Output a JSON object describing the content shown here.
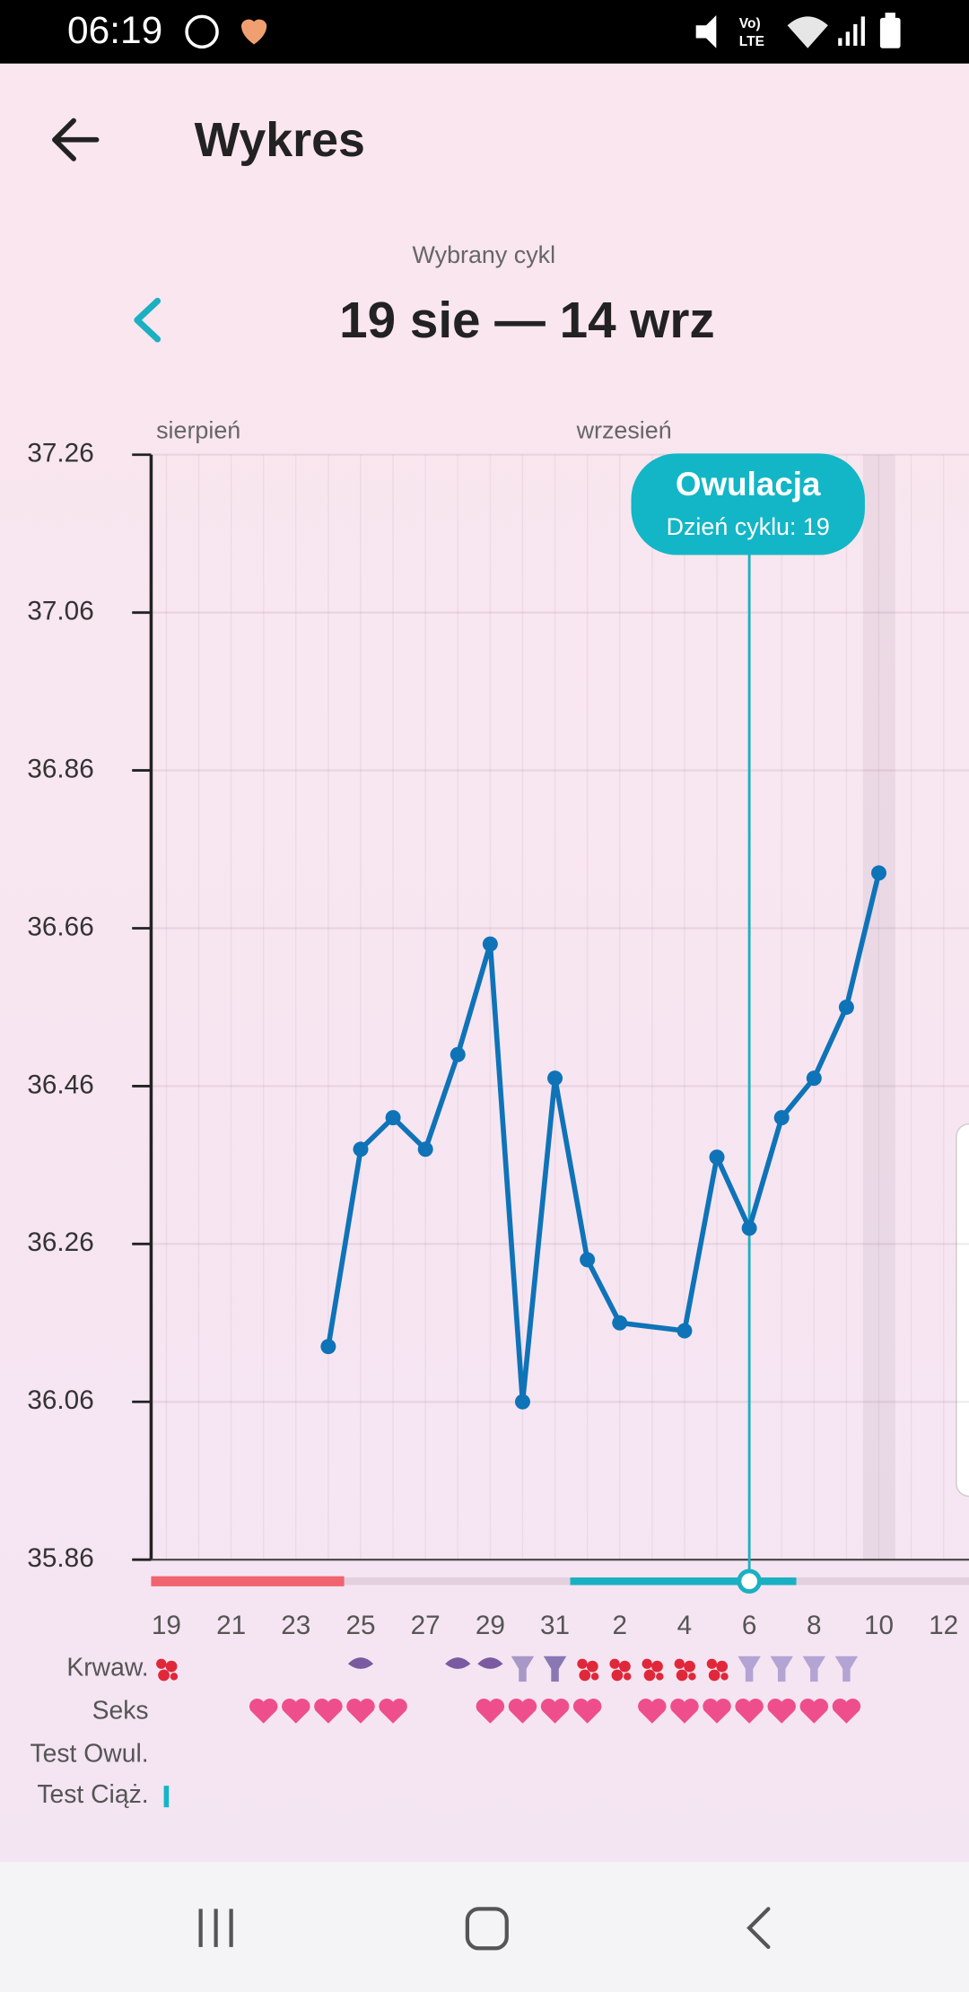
{
  "status_bar": {
    "time": "06:19"
  },
  "header": {
    "title": "Wykres"
  },
  "cycle": {
    "label": "Wybrany cykl",
    "range": "19 sie — 14 wrz"
  },
  "chart_data": {
    "type": "line",
    "month_labels": [
      "sierpień",
      "wrzesień"
    ],
    "categories": [
      "19",
      null,
      "21",
      null,
      "23",
      null,
      "25",
      null,
      "27",
      null,
      "29",
      null,
      "31",
      null,
      "2",
      null,
      "4",
      null,
      "6",
      null,
      "8",
      null,
      "10",
      null,
      "12"
    ],
    "values": [
      null,
      null,
      null,
      null,
      null,
      36.13,
      36.38,
      36.42,
      36.38,
      36.5,
      36.64,
      36.06,
      36.47,
      36.24,
      36.16,
      null,
      36.15,
      36.37,
      36.28,
      36.42,
      36.47,
      36.56,
      36.73,
      null,
      null
    ],
    "color": "#0f73b8",
    "connect_gaps": true,
    "ylim": [
      35.86,
      37.26
    ],
    "yticks": [
      35.86,
      36.06,
      36.26,
      36.46,
      36.66,
      36.86,
      37.06,
      37.26
    ],
    "grid": true,
    "annotation": {
      "title": "Owulacja",
      "text": "Dzień cyklu: 19"
    },
    "row_labels": [
      "Krwaw.",
      "Seks",
      "Test Owul.",
      "Test Ciąż."
    ]
  }
}
